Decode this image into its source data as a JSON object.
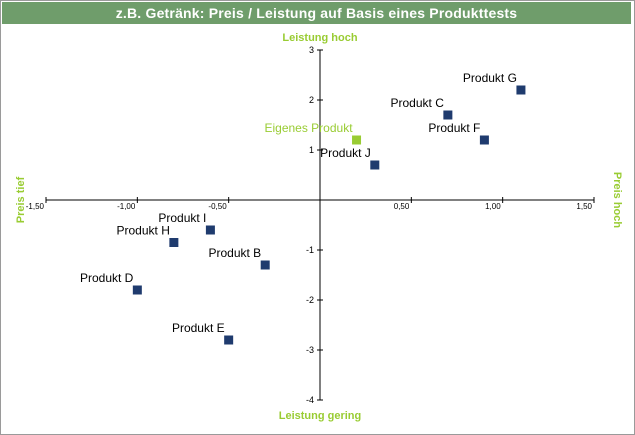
{
  "title": "z.B. Getränk: Preis / Leistung auf Basis eines Produkttests",
  "chart_data": {
    "type": "scatter",
    "xlim": [
      -1.5,
      1.5
    ],
    "ylim": [
      -4,
      3
    ],
    "x_tick_labels": [
      {
        "value": -1.5,
        "label": "-1,50"
      },
      {
        "value": -1.0,
        "label": "-1,00"
      },
      {
        "value": -0.5,
        "label": "-0,50"
      },
      {
        "value": 0.5,
        "label": "0,50"
      },
      {
        "value": 1.0,
        "label": "1,00"
      },
      {
        "value": 1.5,
        "label": "1,50"
      }
    ],
    "y_tick_labels": [
      {
        "value": 3,
        "label": "3"
      },
      {
        "value": 2,
        "label": "2"
      },
      {
        "value": 1,
        "label": "1"
      },
      {
        "value": -1,
        "label": "-1"
      },
      {
        "value": -2,
        "label": "-2"
      },
      {
        "value": -3,
        "label": "-3"
      },
      {
        "value": -4,
        "label": "-4"
      }
    ],
    "quadrant_labels": {
      "top": "Leistung hoch",
      "bottom": "Leistung gering",
      "left": "Preis tief",
      "right": "Preis hoch"
    },
    "colors": {
      "point": "#1f3b6e",
      "highlight": "#99cc33",
      "title_bar": "#6f9d6b",
      "axis": "#000000"
    },
    "grid": false,
    "points": [
      {
        "name": "Produkt G",
        "x": 1.1,
        "y": 2.2,
        "highlight": false
      },
      {
        "name": "Produkt C",
        "x": 0.7,
        "y": 1.7,
        "highlight": false
      },
      {
        "name": "Produkt F",
        "x": 0.9,
        "y": 1.2,
        "highlight": false
      },
      {
        "name": "Eigenes Produkt",
        "x": 0.2,
        "y": 1.2,
        "highlight": true
      },
      {
        "name": "Produkt J",
        "x": 0.3,
        "y": 0.7,
        "highlight": false
      },
      {
        "name": "Produkt I",
        "x": -0.6,
        "y": -0.6,
        "highlight": false
      },
      {
        "name": "Produkt H",
        "x": -0.8,
        "y": -0.85,
        "highlight": false
      },
      {
        "name": "Produkt B",
        "x": -0.3,
        "y": -1.3,
        "highlight": false
      },
      {
        "name": "Produkt D",
        "x": -1.0,
        "y": -1.8,
        "highlight": false
      },
      {
        "name": "Produkt E",
        "x": -0.5,
        "y": -2.8,
        "highlight": false
      }
    ]
  }
}
